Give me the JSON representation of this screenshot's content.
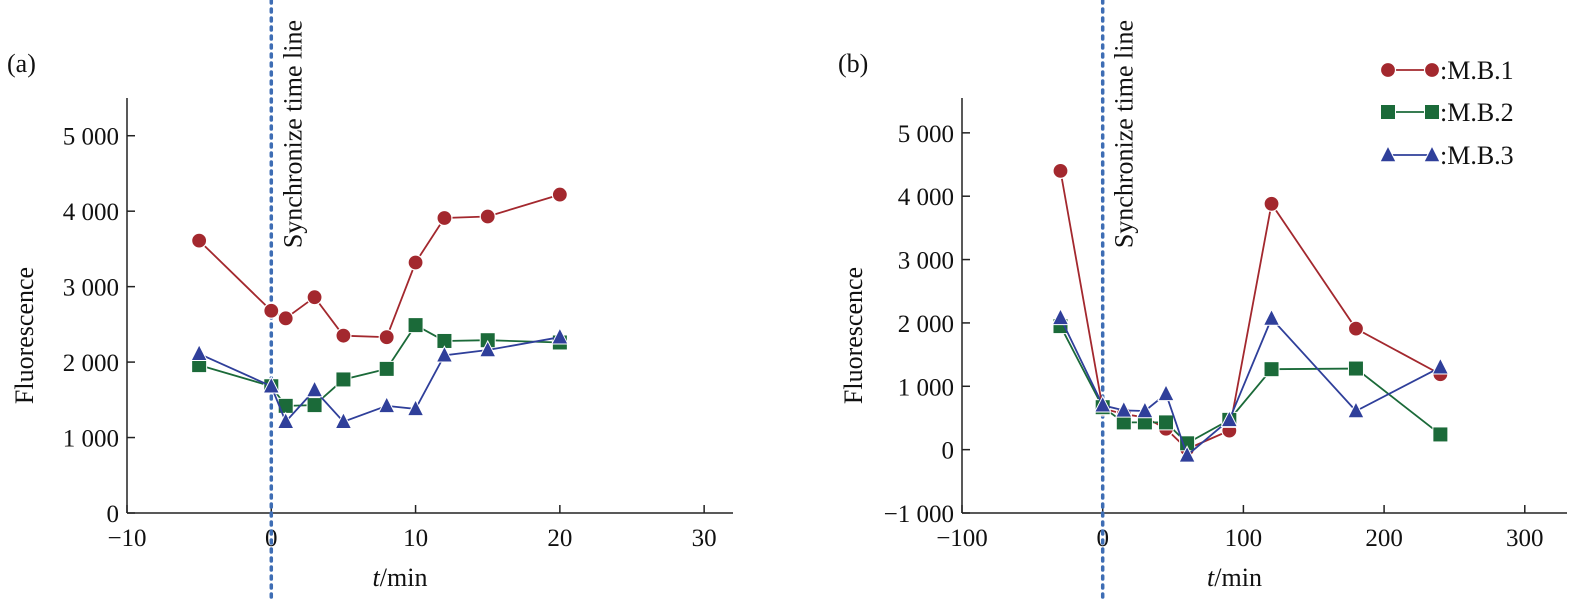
{
  "colors": {
    "mb1": "#a3282e",
    "mb2": "#1b6a39",
    "mb3": "#2f3f9a",
    "sync_line": "#3e6db4",
    "axis": "#222222"
  },
  "legend": [
    {
      "label": ":M.B.1",
      "marker": "circle",
      "color_key": "mb1"
    },
    {
      "label": ":M.B.2",
      "marker": "square",
      "color_key": "mb2"
    },
    {
      "label": ":M.B.3",
      "marker": "triangle",
      "color_key": "mb3"
    }
  ],
  "chart_data": [
    {
      "type": "line",
      "panel_label": "(a)",
      "xlabel_italic": "t",
      "xlabel_rest": "/min",
      "ylabel": "Fluorescence",
      "xlim": [
        -10,
        32
      ],
      "ylim": [
        0,
        5500
      ],
      "xticks": [
        -10,
        0,
        10,
        20,
        30
      ],
      "xtick_labels": [
        "−10",
        "0",
        "10",
        "20",
        "30"
      ],
      "yticks": [
        0,
        1000,
        2000,
        3000,
        4000,
        5000
      ],
      "ytick_labels": [
        "0",
        "1 000",
        "2 000",
        "3 000",
        "4 000",
        "5 000"
      ],
      "annotation": {
        "text": "Synchronize time line",
        "x": 0
      },
      "series": [
        {
          "name": ":M.B.1",
          "marker": "circle",
          "x": [
            -5,
            0,
            1,
            3,
            5,
            8,
            10,
            12,
            15,
            20
          ],
          "y": [
            3610,
            2680,
            2580,
            2860,
            2350,
            2330,
            3320,
            3910,
            3930,
            4220
          ]
        },
        {
          "name": ":M.B.2",
          "marker": "square",
          "x": [
            -5,
            0,
            1,
            3,
            5,
            8,
            10,
            12,
            15,
            20
          ],
          "y": [
            1960,
            1680,
            1420,
            1430,
            1770,
            1910,
            2490,
            2280,
            2290,
            2260
          ]
        },
        {
          "name": ":M.B.3",
          "marker": "triangle",
          "x": [
            -5,
            0,
            1,
            3,
            5,
            8,
            10,
            12,
            15,
            20
          ],
          "y": [
            2110,
            1680,
            1210,
            1630,
            1210,
            1420,
            1380,
            2090,
            2160,
            2330
          ]
        }
      ]
    },
    {
      "type": "line",
      "panel_label": "(b)",
      "xlabel_italic": "t",
      "xlabel_rest": "/min",
      "ylabel": "Fluorescence",
      "xlim": [
        -100,
        330
      ],
      "ylim": [
        -1000,
        5550
      ],
      "xticks": [
        -100,
        0,
        100,
        200,
        300
      ],
      "xtick_labels": [
        "−100",
        "0",
        "100",
        "200",
        "300"
      ],
      "yticks": [
        -1000,
        0,
        1000,
        2000,
        3000,
        4000,
        5000
      ],
      "ytick_labels": [
        "−1 000",
        "0",
        "1 000",
        "2 000",
        "3 000",
        "4 000",
        "5 000"
      ],
      "annotation": {
        "text": "Synchronize time line",
        "x": 0
      },
      "series": [
        {
          "name": ":M.B.1",
          "marker": "circle",
          "x": [
            -30,
            0,
            15,
            30,
            45,
            60,
            90,
            120,
            180,
            240
          ],
          "y": [
            4400,
            650,
            560,
            510,
            330,
            10,
            300,
            3880,
            1910,
            1190
          ]
        },
        {
          "name": ":M.B.2",
          "marker": "square",
          "x": [
            -30,
            0,
            15,
            30,
            45,
            60,
            90,
            120,
            180,
            240
          ],
          "y": [
            1950,
            670,
            430,
            430,
            430,
            100,
            470,
            1270,
            1280,
            240
          ]
        },
        {
          "name": ":M.B.3",
          "marker": "triangle",
          "x": [
            -30,
            0,
            15,
            30,
            45,
            60,
            90,
            120,
            180,
            240
          ],
          "y": [
            2080,
            700,
            620,
            610,
            880,
            -90,
            470,
            2070,
            610,
            1300
          ]
        }
      ]
    }
  ]
}
